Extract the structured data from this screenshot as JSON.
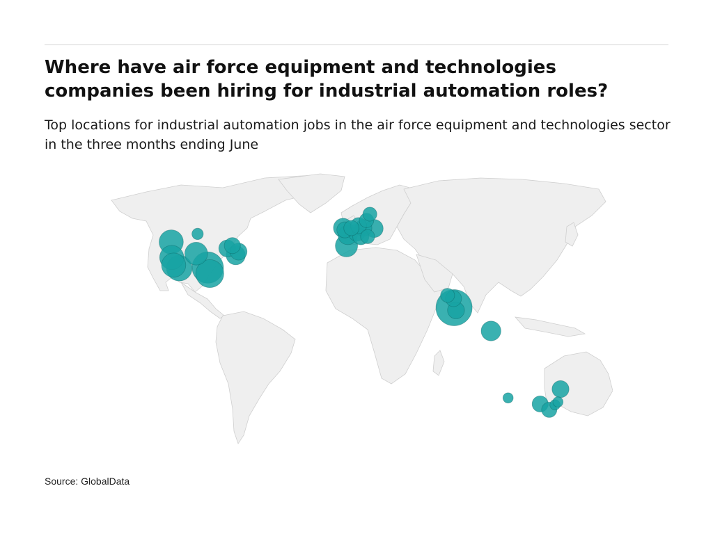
{
  "header": {
    "title": "Where have air force equipment and technologies companies been hiring for industrial automation roles?",
    "subtitle": "Top locations for industrial automation jobs in the air force equipment and technologies sector in the three months ending June"
  },
  "footer": {
    "source": "Source: GlobalData"
  },
  "colors": {
    "bubble": "#17a3a3",
    "bubble_dark": "#0a5a5a",
    "land": "#efefef",
    "border": "#cfcfcf"
  },
  "map_data": {
    "projection": "equirectangular",
    "locations": [
      {
        "region": "north-america",
        "lon": -122.7,
        "lat": 45.5,
        "relative_size": 0.45
      },
      {
        "region": "north-america",
        "lon": -104.0,
        "lat": 49.5,
        "relative_size": 0.1
      },
      {
        "region": "north-america",
        "lon": -122.3,
        "lat": 37.8,
        "relative_size": 0.45
      },
      {
        "region": "north-america",
        "lon": -121.0,
        "lat": 34.0,
        "relative_size": 0.45
      },
      {
        "region": "north-america",
        "lon": -117.0,
        "lat": 32.5,
        "relative_size": 0.5
      },
      {
        "region": "north-america",
        "lon": -105.0,
        "lat": 39.7,
        "relative_size": 0.4
      },
      {
        "region": "north-america",
        "lon": -96.8,
        "lat": 32.8,
        "relative_size": 0.75
      },
      {
        "region": "north-america",
        "lon": -95.4,
        "lat": 29.8,
        "relative_size": 0.6
      },
      {
        "region": "north-america",
        "lon": -83.0,
        "lat": 42.3,
        "relative_size": 0.22
      },
      {
        "region": "north-america",
        "lon": -79.4,
        "lat": 43.7,
        "relative_size": 0.2
      },
      {
        "region": "north-america",
        "lon": -75.0,
        "lat": 40.7,
        "relative_size": 0.22
      },
      {
        "region": "north-america",
        "lon": -77.0,
        "lat": 38.9,
        "relative_size": 0.28
      },
      {
        "region": "europe",
        "lon": -1.0,
        "lat": 52.5,
        "relative_size": 0.28
      },
      {
        "region": "europe",
        "lon": 0.3,
        "lat": 51.5,
        "relative_size": 0.2
      },
      {
        "region": "europe",
        "lon": 2.3,
        "lat": 48.9,
        "relative_size": 0.28
      },
      {
        "region": "europe",
        "lon": 1.4,
        "lat": 43.6,
        "relative_size": 0.38
      },
      {
        "region": "europe",
        "lon": 4.9,
        "lat": 52.4,
        "relative_size": 0.18
      },
      {
        "region": "europe",
        "lon": 8.7,
        "lat": 50.1,
        "relative_size": 0.22
      },
      {
        "region": "europe",
        "lon": 11.6,
        "lat": 48.1,
        "relative_size": 0.2
      },
      {
        "region": "europe",
        "lon": 10.0,
        "lat": 53.6,
        "relative_size": 0.2
      },
      {
        "region": "europe",
        "lon": 13.4,
        "lat": 52.5,
        "relative_size": 0.22
      },
      {
        "region": "europe",
        "lon": 18.0,
        "lat": 59.3,
        "relative_size": 0.15
      },
      {
        "region": "europe",
        "lon": 21.0,
        "lat": 52.2,
        "relative_size": 0.25
      },
      {
        "region": "europe",
        "lon": 15.6,
        "lat": 56.2,
        "relative_size": 0.16
      },
      {
        "region": "europe",
        "lon": 16.4,
        "lat": 48.2,
        "relative_size": 0.15
      },
      {
        "region": "asia",
        "lon": 73.0,
        "lat": 19.0,
        "relative_size": 0.15
      },
      {
        "region": "asia",
        "lon": 77.6,
        "lat": 12.9,
        "relative_size": 1.0
      },
      {
        "region": "asia",
        "lon": 77.2,
        "lat": 17.4,
        "relative_size": 0.2
      },
      {
        "region": "asia",
        "lon": 79.0,
        "lat": 11.6,
        "relative_size": 0.22
      },
      {
        "region": "asia",
        "lon": 103.8,
        "lat": 1.35,
        "relative_size": 0.3
      },
      {
        "region": "oceania",
        "lon": 153.0,
        "lat": -27.5,
        "relative_size": 0.22
      },
      {
        "region": "oceania",
        "lon": 115.9,
        "lat": -31.9,
        "relative_size": 0.08
      },
      {
        "region": "oceania",
        "lon": 138.6,
        "lat": -34.9,
        "relative_size": 0.2
      },
      {
        "region": "oceania",
        "lon": 145.0,
        "lat": -37.8,
        "relative_size": 0.18
      },
      {
        "region": "oceania",
        "lon": 149.1,
        "lat": -35.3,
        "relative_size": 0.08
      },
      {
        "region": "oceania",
        "lon": 151.2,
        "lat": -33.9,
        "relative_size": 0.08
      }
    ]
  }
}
